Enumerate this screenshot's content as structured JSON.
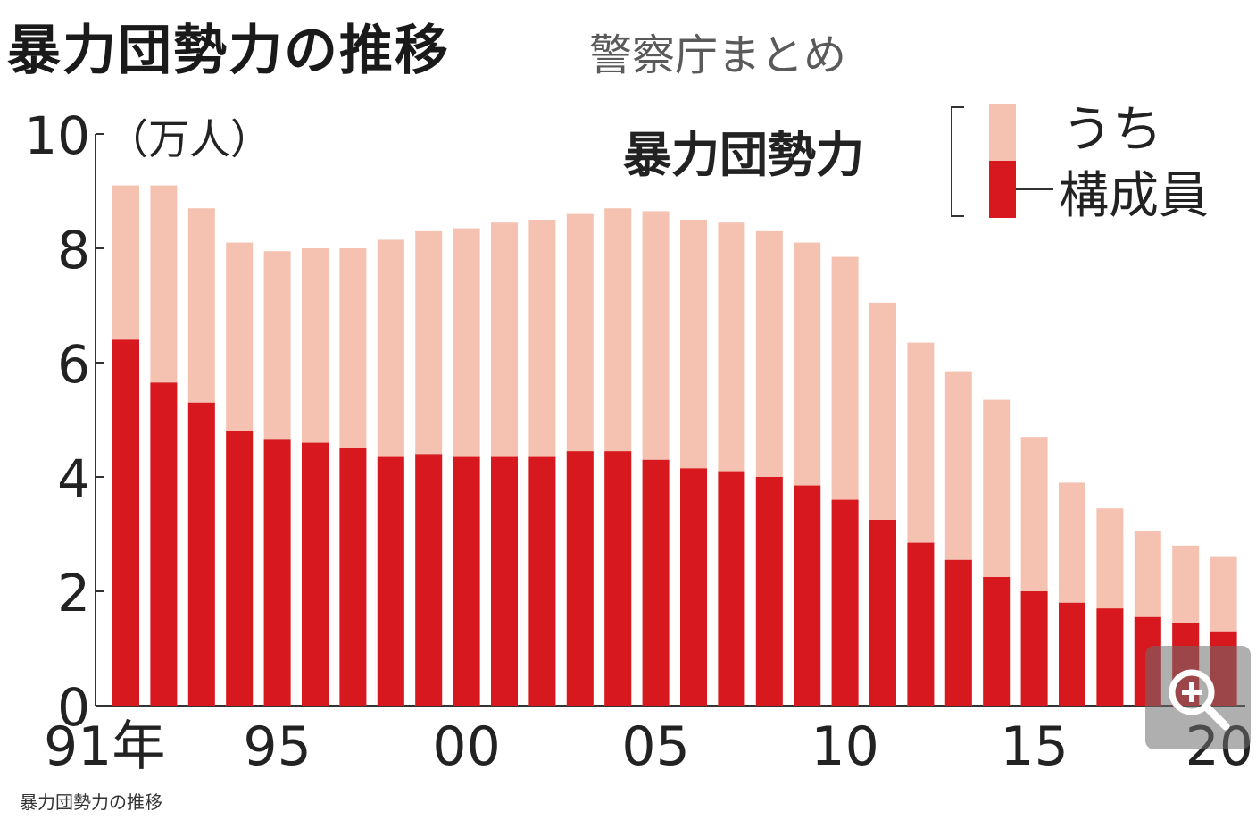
{
  "chart_data": {
    "type": "bar",
    "title": "暴力団勢力の推移",
    "subtitle": "警察庁まとめ",
    "ylabel": "（万人）",
    "ylim": [
      0,
      10
    ],
    "yticks": [
      "0",
      "2",
      "4",
      "6",
      "8",
      "10"
    ],
    "xticks": [
      {
        "index": 0,
        "label": "91年"
      },
      {
        "index": 4,
        "label": "95"
      },
      {
        "index": 9,
        "label": "00"
      },
      {
        "index": 14,
        "label": "05"
      },
      {
        "index": 19,
        "label": "10"
      },
      {
        "index": 24,
        "label": "15"
      },
      {
        "index": 29,
        "label": "20"
      }
    ],
    "categories": [
      "1991",
      "1992",
      "1993",
      "1994",
      "1995",
      "1996",
      "1997",
      "1998",
      "1999",
      "2000",
      "2001",
      "2002",
      "2003",
      "2004",
      "2005",
      "2006",
      "2007",
      "2008",
      "2009",
      "2010",
      "2011",
      "2012",
      "2013",
      "2014",
      "2015",
      "2016",
      "2017",
      "2018",
      "2019",
      "2020"
    ],
    "series": [
      {
        "name": "暴力団勢力",
        "color": "#f5c2b1",
        "values": [
          9.1,
          9.1,
          8.7,
          8.1,
          7.95,
          8.0,
          8.0,
          8.15,
          8.3,
          8.35,
          8.45,
          8.5,
          8.6,
          8.7,
          8.65,
          8.5,
          8.45,
          8.3,
          8.1,
          7.85,
          7.05,
          6.35,
          5.85,
          5.35,
          4.7,
          3.9,
          3.45,
          3.05,
          2.8,
          2.6
        ]
      },
      {
        "name": "うち構成員",
        "color": "#d7181f",
        "values": [
          6.4,
          5.65,
          5.3,
          4.8,
          4.65,
          4.6,
          4.5,
          4.35,
          4.4,
          4.35,
          4.35,
          4.35,
          4.45,
          4.45,
          4.3,
          4.15,
          4.1,
          4.0,
          3.85,
          3.6,
          3.25,
          2.85,
          2.55,
          2.25,
          2.0,
          1.8,
          1.7,
          1.55,
          1.45,
          1.3
        ]
      }
    ],
    "legend": {
      "total_label": "暴力団勢力",
      "members_label_1": "うち",
      "members_label_2": "構成員",
      "placement": "top-right"
    },
    "grid": false
  },
  "caption": "暴力団勢力の推移",
  "zoom_icon": "zoom-in-icon"
}
